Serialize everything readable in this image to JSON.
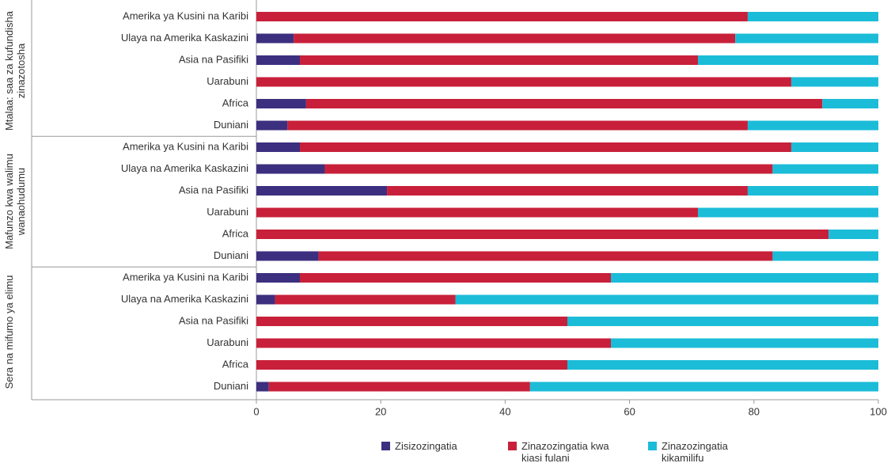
{
  "chart_data": {
    "type": "stacked-bar-horizontal",
    "groups": [
      {
        "label": "Mtalaa: saa za kufundisha zinazotosha",
        "categories": [
          "Amerika ya Kusini na Karibi",
          "Ulaya na Amerika Kaskazini",
          "Asia na Pasifiki",
          "Uarabuni",
          "Africa",
          "Duniani"
        ]
      },
      {
        "label": "Mafunzo kwa walimu wanaohudumu",
        "categories": [
          "Amerika ya Kusini na Karibi",
          "Ulaya na Amerika Kaskazini",
          "Asia na Pasifiki",
          "Uarabuni",
          "Africa",
          "Duniani"
        ]
      },
      {
        "label": "Sera na mifumo ya elimu",
        "categories": [
          "Amerika ya Kusini na Karibi",
          "Ulaya na Amerika Kaskazini",
          "Asia na Pasifiki",
          "Uarabuni",
          "Africa",
          "Duniani"
        ]
      }
    ],
    "series": [
      {
        "name": "Zisizozingatia",
        "color": "#3d2f7f",
        "values": [
          [
            0,
            6,
            7,
            0,
            8,
            5
          ],
          [
            7,
            11,
            21,
            0,
            0,
            10
          ],
          [
            7,
            3,
            0,
            0,
            0,
            2
          ]
        ]
      },
      {
        "name": "Zinazozingatia kwa kiasi fulani",
        "color": "#c8203a",
        "values": [
          [
            79,
            71,
            64,
            86,
            83,
            74
          ],
          [
            79,
            72,
            58,
            71,
            92,
            73
          ],
          [
            50,
            29,
            50,
            57,
            50,
            42
          ]
        ]
      },
      {
        "name": "Zinazozingatia kikamilifu",
        "color": "#1bbcd8",
        "values": [
          [
            21,
            23,
            29,
            14,
            9,
            21
          ],
          [
            14,
            17,
            21,
            29,
            8,
            17
          ],
          [
            43,
            68,
            50,
            43,
            50,
            56
          ]
        ]
      }
    ],
    "xlim": [
      0,
      100
    ],
    "xticks": [
      0,
      20,
      40,
      60,
      80,
      100
    ]
  }
}
